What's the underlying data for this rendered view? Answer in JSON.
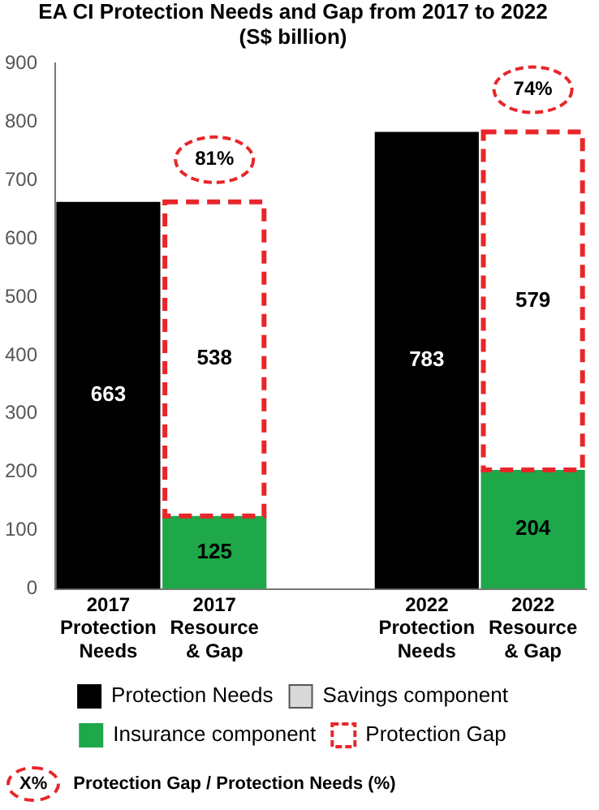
{
  "chart_data": {
    "type": "bar",
    "title": "EA CI Protection Needs and Gap from 2017 to 2022",
    "subtitle": "(S$ billion)",
    "categories": [
      "2017 Protection Needs",
      "2017 Resource & Gap",
      null,
      "2022 Protection Needs",
      "2022 Resource & Gap"
    ],
    "stacked": true,
    "series": [
      {
        "name": "Protection Needs",
        "color": "#000000",
        "values": [
          663,
          null,
          null,
          783,
          null
        ]
      },
      {
        "name": "Savings component",
        "color": "#d9d9d9",
        "values": [
          null,
          null,
          null,
          null,
          null
        ]
      },
      {
        "name": "Insurance component",
        "color": "#1ea84a",
        "values": [
          null,
          125,
          null,
          null,
          204
        ]
      },
      {
        "name": "Protection Gap",
        "color": "#e8262a",
        "values": [
          null,
          538,
          null,
          null,
          579
        ]
      }
    ],
    "ylim": [
      0,
      900
    ],
    "yticks": [
      0,
      100,
      200,
      300,
      400,
      500,
      600,
      700,
      800,
      900
    ],
    "data_labels": true,
    "legend": "bottom",
    "annotations": [
      "81%",
      "74%",
      "X%",
      "Protection Gap / Protection Needs (%)"
    ]
  }
}
